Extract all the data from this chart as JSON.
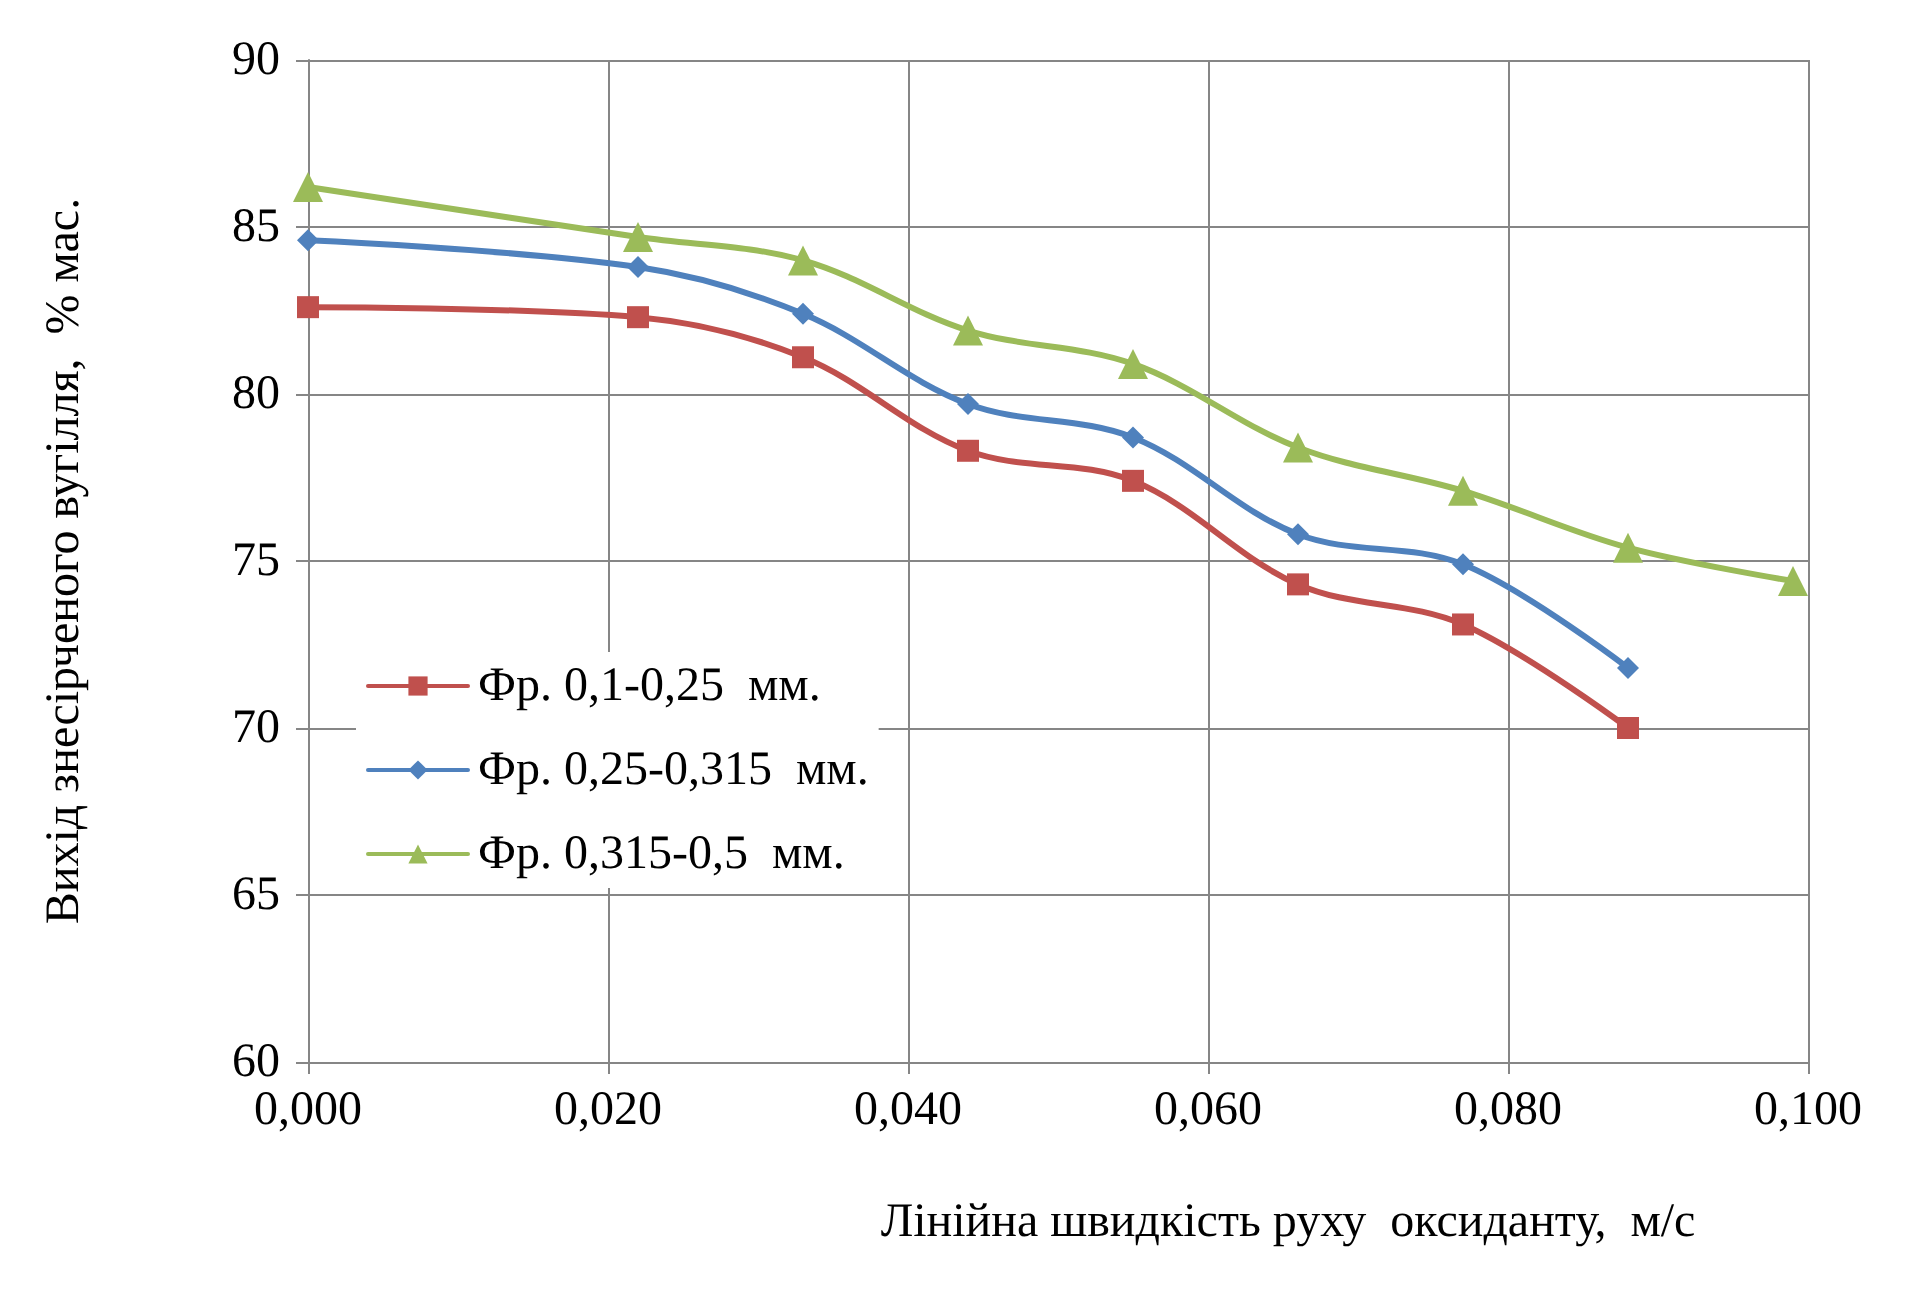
{
  "chart_data": {
    "type": "line",
    "xlabel": "Лінійна швидкість руху  оксиданту,  м/с",
    "ylabel": "Вихід знесірченого вугілля,  % мас.",
    "xlim": [
      0,
      0.1
    ],
    "xticks": [
      {
        "value": 0,
        "label": "0,000"
      },
      {
        "value": 0.02,
        "label": "0,020"
      },
      {
        "value": 0.04,
        "label": "0,040"
      },
      {
        "value": 0.06,
        "label": "0,060"
      },
      {
        "value": 0.08,
        "label": "0,080"
      },
      {
        "value": 0.1,
        "label": "0,100"
      }
    ],
    "ylim": [
      60,
      90
    ],
    "yticks": [
      60,
      65,
      70,
      75,
      80,
      85,
      90
    ],
    "grid": true,
    "legend": "left",
    "series": [
      {
        "name": "Фр. 0,1-0,25  мм.",
        "color": "#c0504d",
        "marker": "square",
        "x": [
          0,
          0.022,
          0.033,
          0.044,
          0.055,
          0.066,
          0.077,
          0.088
        ],
        "values": [
          82.6,
          82.3,
          81.1,
          78.3,
          77.4,
          74.3,
          73.1,
          70.0
        ]
      },
      {
        "name": "Фр. 0,25-0,315  мм.",
        "color": "#4f81bd",
        "marker": "diamond",
        "x": [
          0,
          0.022,
          0.033,
          0.044,
          0.055,
          0.066,
          0.077,
          0.088
        ],
        "values": [
          84.6,
          83.8,
          82.4,
          79.7,
          78.7,
          75.8,
          74.9,
          71.8
        ]
      },
      {
        "name": "Фр. 0,315-0,5  мм.",
        "color": "#9bbb59",
        "marker": "triangle",
        "x": [
          0,
          0.022,
          0.033,
          0.044,
          0.055,
          0.066,
          0.077,
          0.088,
          0.099
        ],
        "values": [
          86.2,
          84.7,
          84.0,
          81.9,
          80.9,
          78.4,
          77.1,
          75.4,
          74.4
        ]
      }
    ]
  }
}
